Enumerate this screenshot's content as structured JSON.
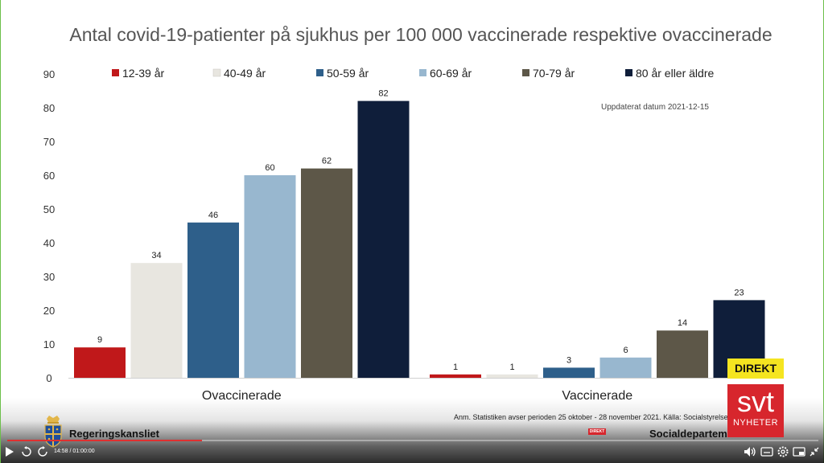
{
  "chart_data": {
    "type": "bar",
    "title": "Antal covid-19-patienter på sjukhus per 100 000 vaccinerade respektive ovaccinerade",
    "categories": [
      "Ovaccinerade",
      "Vaccinerade"
    ],
    "series": [
      {
        "name": "12-39 år",
        "color": "#c0181a",
        "values": [
          9,
          1
        ]
      },
      {
        "name": "40-49 år",
        "color": "#e8e6e0",
        "values": [
          34,
          1
        ]
      },
      {
        "name": "50-59 år",
        "color": "#2e5f8a",
        "values": [
          46,
          3
        ]
      },
      {
        "name": "60-69 år",
        "color": "#98b7cf",
        "values": [
          60,
          6
        ]
      },
      {
        "name": "70-79 år",
        "color": "#5d5748",
        "values": [
          62,
          14
        ]
      },
      {
        "name": "80 år eller äldre",
        "color": "#0f1e3a",
        "values": [
          82,
          23
        ]
      }
    ],
    "y_ticks": [
      "0",
      "10",
      "20",
      "30",
      "40",
      "50",
      "60",
      "70",
      "80",
      "90"
    ],
    "ylim": [
      0,
      90
    ],
    "grid": false,
    "legend_position": "top",
    "annotation": "Uppdaterat datum 2021-12-15"
  },
  "footer": {
    "note": "Anm. Statistiken avser perioden 25 oktober - 28 november 2021. Källa: Socialstyrelsen",
    "government_name": "Regeringskansliet",
    "department_name": "Socialdepartementet"
  },
  "broadcast": {
    "live_badge": "DIREKT",
    "logo_text": "svt",
    "logo_subtext": "NYHETER",
    "progress_live_marker": "DIREKT"
  },
  "player": {
    "time_readout": "14:58 / 01:00:00",
    "progress": 0.24,
    "icons": [
      "play-icon",
      "rewind-icon",
      "forward-icon",
      "volume-icon",
      "subtitles-icon",
      "settings-icon",
      "pip-icon",
      "fullscreen-exit-icon"
    ]
  }
}
